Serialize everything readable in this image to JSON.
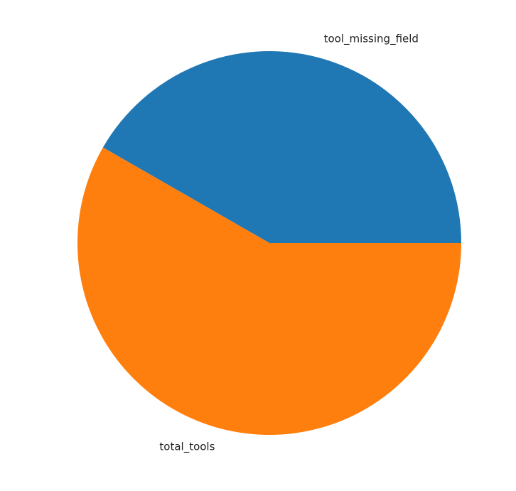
{
  "chart_data": {
    "type": "pie",
    "title": "",
    "categories": [
      "tool_missing_field",
      "total_tools"
    ],
    "values": [
      41.7,
      58.3
    ],
    "colors": [
      "#1f77b4",
      "#ff7f0e"
    ],
    "start_angle_deg": 0,
    "direction": "counterclockwise",
    "legend": "none"
  }
}
